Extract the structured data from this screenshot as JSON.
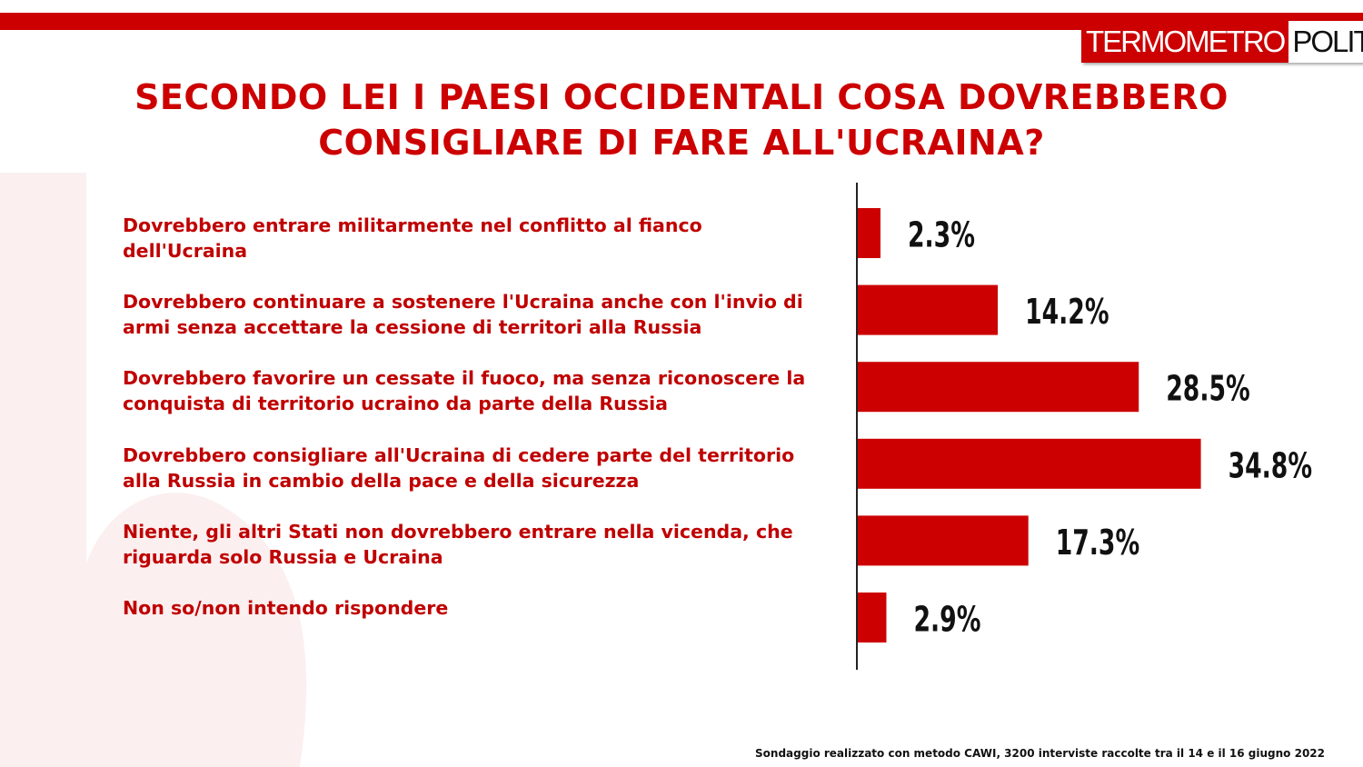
{
  "brand": {
    "logo_left": "TERMOMETRO",
    "logo_right": "POLITICO"
  },
  "title_lines": [
    "SECONDO LEI I PAESI OCCIDENTALI COSA DOVREBBERO",
    "CONSIGLIARE DI FARE ALL'UCRAINA?"
  ],
  "footnote": "Sondaggio realizzato con metodo CAWI, 3200 interviste raccolte tra il 14 e il 16 giugno 2022",
  "colors": {
    "accent": "#cc0000",
    "bar": "#cc0000",
    "text": "#111111"
  },
  "chart_data": {
    "type": "bar",
    "orientation": "horizontal",
    "categories": [
      "Dovrebbero entrare militarmente nel conflitto al fianco dell'Ucraina",
      "Dovrebbero continuare a sostenere l'Ucraina anche con l'invio di armi senza accettare la cessione di territori alla Russia",
      "Dovrebbero favorire un cessate il fuoco, ma senza riconoscere la conquista di territorio ucraino da parte della Russia",
      "Dovrebbero consigliare all'Ucraina di cedere parte del territorio alla Russia in cambio della pace e della sicurezza",
      "Niente, gli altri Stati non dovrebbero entrare nella vicenda, che riguarda solo Russia e Ucraina",
      "Non so/non intendo rispondere"
    ],
    "values": [
      2.3,
      14.2,
      28.5,
      34.8,
      17.3,
      2.9
    ],
    "value_labels": [
      "2.3%",
      "14.2%",
      "28.5%",
      "34.8%",
      "17.3%",
      "2.9%"
    ],
    "grid": false,
    "legend": "none"
  }
}
